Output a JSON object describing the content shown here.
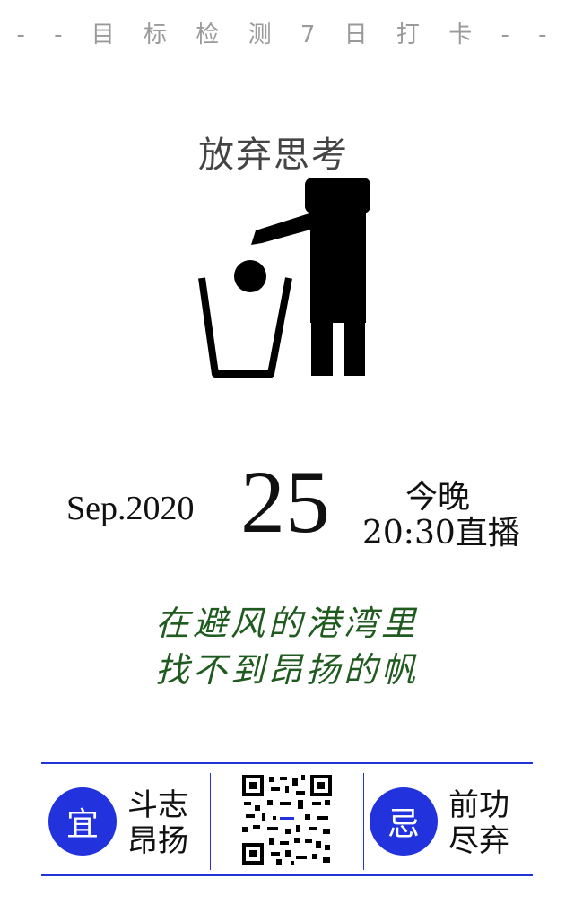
{
  "header": {
    "title": "- - 目 标 检 测 7 日 打 卡 - -"
  },
  "illustration": {
    "caption": "放弃思考",
    "icon": "person-throwing-ball-in-trash-icon"
  },
  "date": {
    "month_year": "Sep.2020",
    "day": "25"
  },
  "live": {
    "line1": "今晚",
    "line2": "20:30直播"
  },
  "quote": {
    "line1": "在避风的港湾里",
    "line2": "找不到昂扬的帆"
  },
  "footer": {
    "good": {
      "badge": "宜",
      "line1": "斗志",
      "line2": "昂扬"
    },
    "bad": {
      "badge": "忌",
      "line1": "前功",
      "line2": "尽弃"
    },
    "qr_icon": "qr-code-icon"
  },
  "colors": {
    "accent": "#2233dd",
    "quote": "#1f5a1f",
    "header": "#9a9a9a"
  }
}
